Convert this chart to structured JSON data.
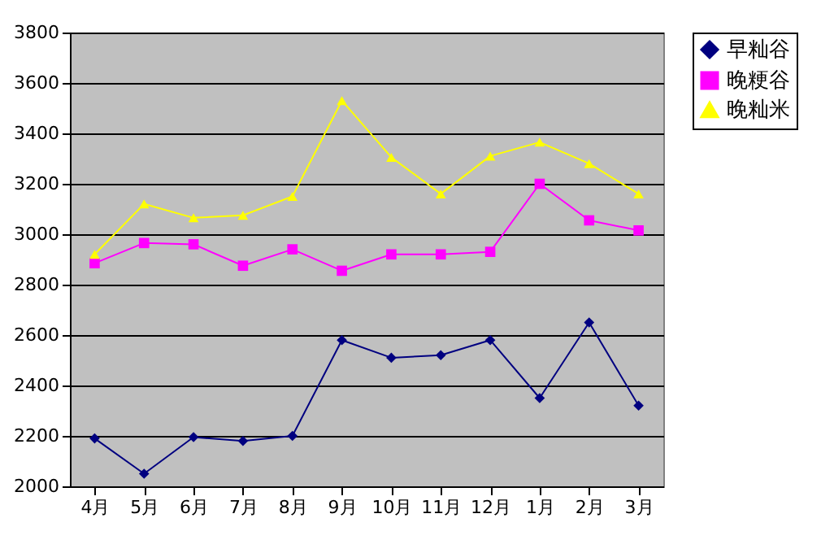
{
  "chart_data": {
    "type": "line",
    "categories": [
      "4月",
      "5月",
      "6月",
      "7月",
      "8月",
      "9月",
      "10月",
      "11月",
      "12月",
      "1月",
      "2月",
      "3月"
    ],
    "series": [
      {
        "name": "早籼谷",
        "color": "#000080",
        "marker": "diamond",
        "values": [
          2190,
          2050,
          2195,
          2180,
          2200,
          2580,
          2510,
          2520,
          2580,
          2350,
          2650,
          2320
        ]
      },
      {
        "name": "晚粳谷",
        "color": "#ff00ff",
        "marker": "square",
        "values": [
          2885,
          2965,
          2960,
          2875,
          2940,
          2855,
          2920,
          2920,
          2930,
          3200,
          3055,
          3015
        ]
      },
      {
        "name": "晚籼米",
        "color": "#ffff00",
        "marker": "triangle",
        "values": [
          2920,
          3120,
          3065,
          3075,
          3150,
          3530,
          3305,
          3160,
          3310,
          3365,
          3280,
          3160
        ]
      }
    ],
    "ylim": [
      2000,
      3800
    ],
    "yticks": [
      2000,
      2200,
      2400,
      2600,
      2800,
      3000,
      3200,
      3400,
      3600,
      3800
    ],
    "grid": "y",
    "legend": "right",
    "line_style": "solid"
  }
}
